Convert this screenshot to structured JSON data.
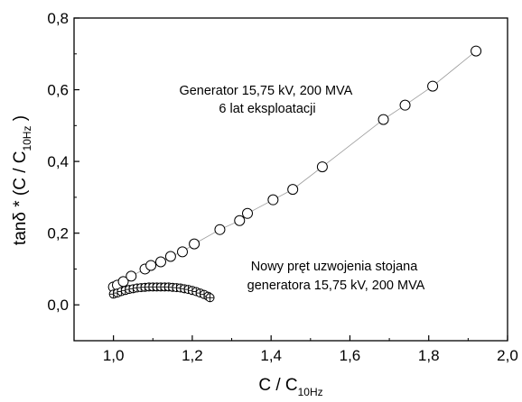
{
  "chart_data": {
    "type": "scatter",
    "xlabel_main": "C / C",
    "xlabel_sub": "10Hz",
    "ylabel_pre": "tanδ * (C / C",
    "ylabel_sub": "10Hz",
    "ylabel_post": " )",
    "xlim": [
      0.9,
      2.0
    ],
    "ylim": [
      -0.1,
      0.8
    ],
    "x_ticks": [
      1.0,
      1.2,
      1.4,
      1.6,
      1.8,
      2.0
    ],
    "x_tick_labels": [
      "1,0",
      "1,2",
      "1,4",
      "1,6",
      "1,8",
      "2,0"
    ],
    "y_ticks": [
      0.0,
      0.2,
      0.4,
      0.6,
      0.8
    ],
    "y_tick_labels": [
      "0,0",
      "0,2",
      "0,4",
      "0,6",
      "0,8"
    ],
    "grid": false,
    "annotations": [
      {
        "lines": [
          "Generator 15,75 kV, 200 MVA",
          "6 lat eksploatacji"
        ]
      },
      {
        "lines": [
          "Nowy pręt uzwojenia stojana",
          "generatora 15,75 kV, 200 MVA"
        ]
      }
    ],
    "series": [
      {
        "marker": "circle",
        "line": true,
        "x": [
          1.0,
          1.01,
          1.025,
          1.045,
          1.08,
          1.095,
          1.12,
          1.145,
          1.175,
          1.205,
          1.27,
          1.32,
          1.34,
          1.405,
          1.455,
          1.53,
          1.685,
          1.74,
          1.81,
          1.92
        ],
        "y": [
          0.05,
          0.055,
          0.065,
          0.08,
          0.1,
          0.11,
          0.12,
          0.135,
          0.148,
          0.17,
          0.21,
          0.235,
          0.255,
          0.293,
          0.322,
          0.385,
          0.517,
          0.557,
          0.61,
          0.708
        ]
      },
      {
        "marker": "crossed-circle",
        "line": false,
        "x": [
          1.0,
          1.01,
          1.02,
          1.03,
          1.04,
          1.05,
          1.06,
          1.07,
          1.08,
          1.09,
          1.1,
          1.11,
          1.12,
          1.13,
          1.14,
          1.15,
          1.16,
          1.17,
          1.18,
          1.19,
          1.2,
          1.21,
          1.22,
          1.23,
          1.24,
          1.245
        ],
        "y": [
          0.03,
          0.033,
          0.037,
          0.04,
          0.043,
          0.045,
          0.047,
          0.048,
          0.049,
          0.05,
          0.05,
          0.05,
          0.05,
          0.05,
          0.05,
          0.049,
          0.048,
          0.047,
          0.045,
          0.043,
          0.04,
          0.037,
          0.033,
          0.029,
          0.024,
          0.02
        ]
      }
    ]
  }
}
